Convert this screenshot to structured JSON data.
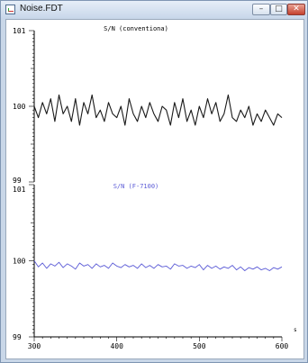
{
  "window": {
    "title": "Noise.FDT",
    "minimize_glyph": "–",
    "maximize_glyph": "□",
    "close_glyph": "✕"
  },
  "icons": {
    "app": "chart-document-icon"
  },
  "colors": {
    "conventional_trace": "#1a1a1a",
    "f7100_trace": "#5a5ad6",
    "axis": "#000000",
    "background": "#ffffff"
  },
  "chart_data": [
    {
      "type": "line",
      "title": "S/N (conventiona)",
      "xlabel": "",
      "ylabel": "",
      "ylim": [
        99,
        101
      ],
      "xlim": [
        300,
        600
      ],
      "y_ticks": [
        "101",
        "100",
        "99"
      ],
      "x_tick_labels": [],
      "series": [
        {
          "x": [
            300,
            305,
            310,
            315,
            320,
            325,
            330,
            335,
            340,
            345,
            350,
            355,
            360,
            365,
            370,
            375,
            380,
            385,
            390,
            395,
            400,
            405,
            410,
            415,
            420,
            425,
            430,
            435,
            440,
            445,
            450,
            455,
            460,
            465,
            470,
            475,
            480,
            485,
            490,
            495,
            500,
            505,
            510,
            515,
            520,
            525,
            530,
            535,
            540,
            545,
            550,
            555,
            560,
            565,
            570,
            575,
            580,
            585,
            590,
            595,
            600
          ],
          "values": [
            100.0,
            99.85,
            100.05,
            99.9,
            100.1,
            99.8,
            100.15,
            99.9,
            100.0,
            99.8,
            100.1,
            99.75,
            100.05,
            99.9,
            100.15,
            99.85,
            99.95,
            99.8,
            100.05,
            99.9,
            99.85,
            100.0,
            99.75,
            100.1,
            99.9,
            99.8,
            100.0,
            99.85,
            100.05,
            99.9,
            99.8,
            100.0,
            99.95,
            99.75,
            100.05,
            99.85,
            100.1,
            99.8,
            99.95,
            99.75,
            100.0,
            99.85,
            100.1,
            99.9,
            100.05,
            99.8,
            99.9,
            100.15,
            99.85,
            99.8,
            99.95,
            99.85,
            100.0,
            99.75,
            99.9,
            99.8,
            99.95,
            99.85,
            99.75,
            99.9,
            99.85
          ]
        }
      ]
    },
    {
      "type": "line",
      "title": "S/N (F-7100)",
      "xlabel": "",
      "ylabel": "",
      "ylim": [
        99,
        101
      ],
      "xlim": [
        300,
        600
      ],
      "y_ticks": [
        "101",
        "100",
        "99"
      ],
      "x_tick_labels": [
        "300",
        "400",
        "500",
        "600"
      ],
      "x_unit_label": "s",
      "series": [
        {
          "x": [
            300,
            305,
            310,
            315,
            320,
            325,
            330,
            335,
            340,
            345,
            350,
            355,
            360,
            365,
            370,
            375,
            380,
            385,
            390,
            395,
            400,
            405,
            410,
            415,
            420,
            425,
            430,
            435,
            440,
            445,
            450,
            455,
            460,
            465,
            470,
            475,
            480,
            485,
            490,
            495,
            500,
            505,
            510,
            515,
            520,
            525,
            530,
            535,
            540,
            545,
            550,
            555,
            560,
            565,
            570,
            575,
            580,
            585,
            590,
            595,
            600
          ],
          "values": [
            100.0,
            99.92,
            99.97,
            99.9,
            99.96,
            99.93,
            99.98,
            99.91,
            99.96,
            99.93,
            99.89,
            99.97,
            99.93,
            99.95,
            99.9,
            99.96,
            99.92,
            99.94,
            99.9,
            99.97,
            99.93,
            99.91,
            99.95,
            99.92,
            99.94,
            99.9,
            99.96,
            99.91,
            99.94,
            99.9,
            99.95,
            99.92,
            99.93,
            99.89,
            99.96,
            99.93,
            99.94,
            99.9,
            99.93,
            99.91,
            99.95,
            99.88,
            99.94,
            99.9,
            99.93,
            99.89,
            99.92,
            99.9,
            99.94,
            99.88,
            99.92,
            99.87,
            99.91,
            99.89,
            99.92,
            99.88,
            99.9,
            99.87,
            99.91,
            99.89,
            99.92
          ]
        }
      ]
    }
  ]
}
